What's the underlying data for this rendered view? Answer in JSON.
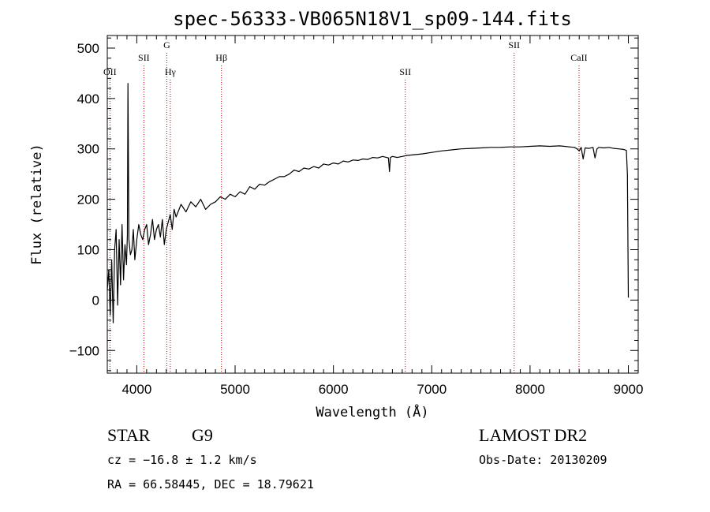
{
  "chart_data": {
    "type": "line",
    "title": "spec-56333-VB065N18V1_sp09-144.fits",
    "xlabel": "Wavelength (Å)",
    "ylabel": "Flux (relative)",
    "xlim": [
      3700,
      9100
    ],
    "ylim": [
      -145,
      525
    ],
    "x_ticks": [
      4000,
      5000,
      6000,
      7000,
      8000,
      9000
    ],
    "y_ticks": [
      -100,
      0,
      100,
      200,
      300,
      400,
      500
    ],
    "series": [
      {
        "x": [
          3700,
          3715,
          3730,
          3745,
          3760,
          3775,
          3790,
          3805,
          3820,
          3835,
          3850,
          3865,
          3880,
          3895,
          3905,
          3910,
          3920,
          3935,
          3950,
          3965,
          3980,
          4000,
          4020,
          4040,
          4060,
          4080,
          4100,
          4120,
          4140,
          4160,
          4180,
          4200,
          4220,
          4240,
          4260,
          4280,
          4300,
          4320,
          4340,
          4360,
          4380,
          4400,
          4450,
          4500,
          4550,
          4600,
          4650,
          4700,
          4750,
          4800,
          4850,
          4900,
          4950,
          5000,
          5050,
          5100,
          5150,
          5200,
          5250,
          5300,
          5350,
          5400,
          5450,
          5500,
          5550,
          5600,
          5650,
          5700,
          5750,
          5800,
          5850,
          5900,
          5950,
          6000,
          6050,
          6100,
          6150,
          6200,
          6250,
          6300,
          6350,
          6400,
          6450,
          6500,
          6540,
          6560,
          6570,
          6580,
          6600,
          6650,
          6700,
          6750,
          6800,
          6900,
          7000,
          7100,
          7200,
          7300,
          7400,
          7500,
          7600,
          7700,
          7800,
          7900,
          8000,
          8100,
          8200,
          8300,
          8350,
          8400,
          8450,
          8480,
          8500,
          8520,
          8540,
          8560,
          8600,
          8640,
          8660,
          8680,
          8700,
          8750,
          8800,
          8850,
          8900,
          8950,
          8980,
          8990,
          9000
        ],
        "y": [
          20,
          60,
          -30,
          80,
          -45,
          100,
          140,
          -10,
          120,
          30,
          150,
          40,
          110,
          70,
          130,
          430,
          120,
          90,
          100,
          140,
          80,
          120,
          150,
          130,
          120,
          140,
          150,
          110,
          130,
          160,
          120,
          140,
          150,
          125,
          160,
          110,
          140,
          155,
          170,
          140,
          180,
          165,
          190,
          175,
          195,
          185,
          200,
          180,
          190,
          195,
          205,
          200,
          210,
          205,
          215,
          210,
          225,
          220,
          230,
          228,
          235,
          240,
          245,
          245,
          250,
          258,
          255,
          262,
          260,
          265,
          262,
          270,
          268,
          272,
          270,
          276,
          274,
          278,
          277,
          280,
          279,
          283,
          282,
          285,
          283,
          282,
          255,
          283,
          285,
          283,
          285,
          287,
          288,
          290,
          293,
          296,
          298,
          300,
          301,
          302,
          303,
          303,
          304,
          304,
          305,
          306,
          305,
          306,
          305,
          304,
          303,
          300,
          296,
          303,
          280,
          302,
          301,
          303,
          282,
          300,
          303,
          302,
          303,
          301,
          300,
          299,
          297,
          250,
          5
        ]
      }
    ],
    "line_markers": [
      {
        "label": "OII",
        "x": 3727,
        "row": "lower"
      },
      {
        "label": "SII",
        "x": 4072,
        "row": "middle"
      },
      {
        "label": "G",
        "x": 4305,
        "row": "top"
      },
      {
        "label": "Hγ",
        "x": 4341,
        "row": "lower"
      },
      {
        "label": "Hβ",
        "x": 4861,
        "row": "middle"
      },
      {
        "label": "SII",
        "x": 6731,
        "row": "lower"
      },
      {
        "label": "SII",
        "x": 7838,
        "row": "top"
      },
      {
        "label": "CaII",
        "x": 8498,
        "row": "middle"
      }
    ],
    "marker_color": "#c00000",
    "grid": false
  },
  "footer": {
    "class_label": "STAR",
    "subclass": "G9",
    "survey": "LAMOST DR2",
    "redshift": "cz = −16.8 ± 1.2 km/s",
    "obs_date": "Obs-Date: 20130209",
    "coords": "RA =  66.58445, DEC =  18.79621"
  }
}
